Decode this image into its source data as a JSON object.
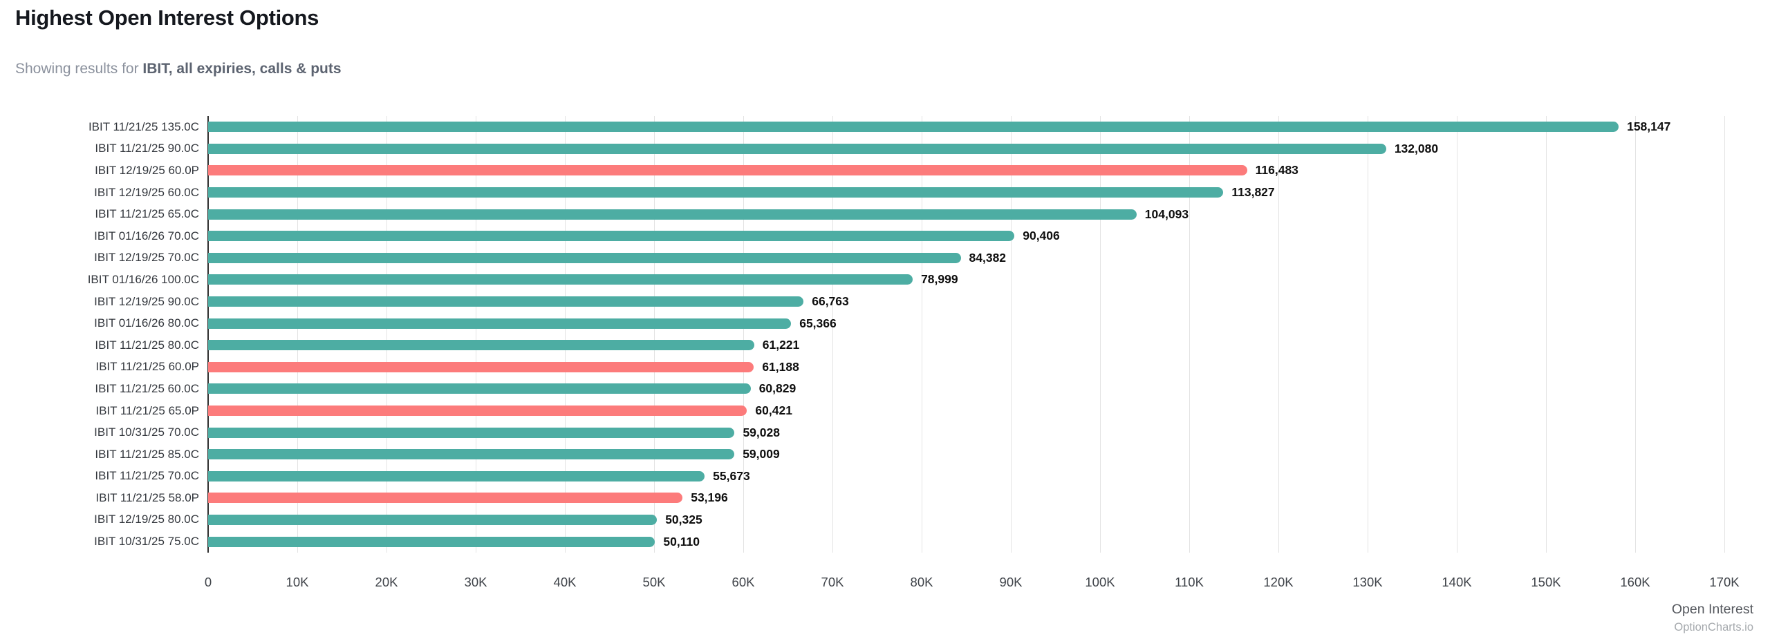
{
  "header": {
    "title": "Highest Open Interest Options",
    "subtitle_prefix": "Showing results for ",
    "subtitle_bold": "IBIT, all expiries, calls & puts"
  },
  "footer": {
    "watermark": "OptionCharts.io"
  },
  "chart_data": {
    "type": "bar",
    "orientation": "horizontal",
    "title": "Highest Open Interest Options",
    "xlabel": "Open Interest",
    "ylabel": "",
    "xlim": [
      0,
      170000
    ],
    "x_ticks": [
      "0",
      "10K",
      "20K",
      "30K",
      "40K",
      "50K",
      "60K",
      "70K",
      "80K",
      "90K",
      "100K",
      "110K",
      "120K",
      "130K",
      "140K",
      "150K",
      "160K",
      "170K"
    ],
    "grid": true,
    "legend": "none",
    "categories": [
      "IBIT 11/21/25 135.0C",
      "IBIT 11/21/25 90.0C",
      "IBIT 12/19/25 60.0P",
      "IBIT 12/19/25 60.0C",
      "IBIT 11/21/25 65.0C",
      "IBIT 01/16/26 70.0C",
      "IBIT 12/19/25 70.0C",
      "IBIT 01/16/26 100.0C",
      "IBIT 12/19/25 90.0C",
      "IBIT 01/16/26 80.0C",
      "IBIT 11/21/25 80.0C",
      "IBIT 11/21/25 60.0P",
      "IBIT 11/21/25 60.0C",
      "IBIT 11/21/25 65.0P",
      "IBIT 10/31/25 70.0C",
      "IBIT 11/21/25 85.0C",
      "IBIT 11/21/25 70.0C",
      "IBIT 11/21/25 58.0P",
      "IBIT 12/19/25 80.0C",
      "IBIT 10/31/25 75.0C"
    ],
    "values": [
      158147,
      132080,
      116483,
      113827,
      104093,
      90406,
      84382,
      78999,
      66763,
      65366,
      61221,
      61188,
      60829,
      60421,
      59028,
      59009,
      55673,
      53196,
      50325,
      50110
    ],
    "value_labels": [
      "158,147",
      "132,080",
      "116,483",
      "113,827",
      "104,093",
      "90,406",
      "84,382",
      "78,999",
      "66,763",
      "65,366",
      "61,221",
      "61,188",
      "60,829",
      "60,421",
      "59,028",
      "59,009",
      "55,673",
      "53,196",
      "50,325",
      "50,110"
    ],
    "types": [
      "call",
      "call",
      "put",
      "call",
      "call",
      "call",
      "call",
      "call",
      "call",
      "call",
      "call",
      "put",
      "call",
      "put",
      "call",
      "call",
      "call",
      "put",
      "call",
      "call"
    ],
    "colors": {
      "call": "#4dada3",
      "put": "#fc7b7b",
      "gridline": "#e3e3e3",
      "axis": "#2e2e2e"
    }
  }
}
